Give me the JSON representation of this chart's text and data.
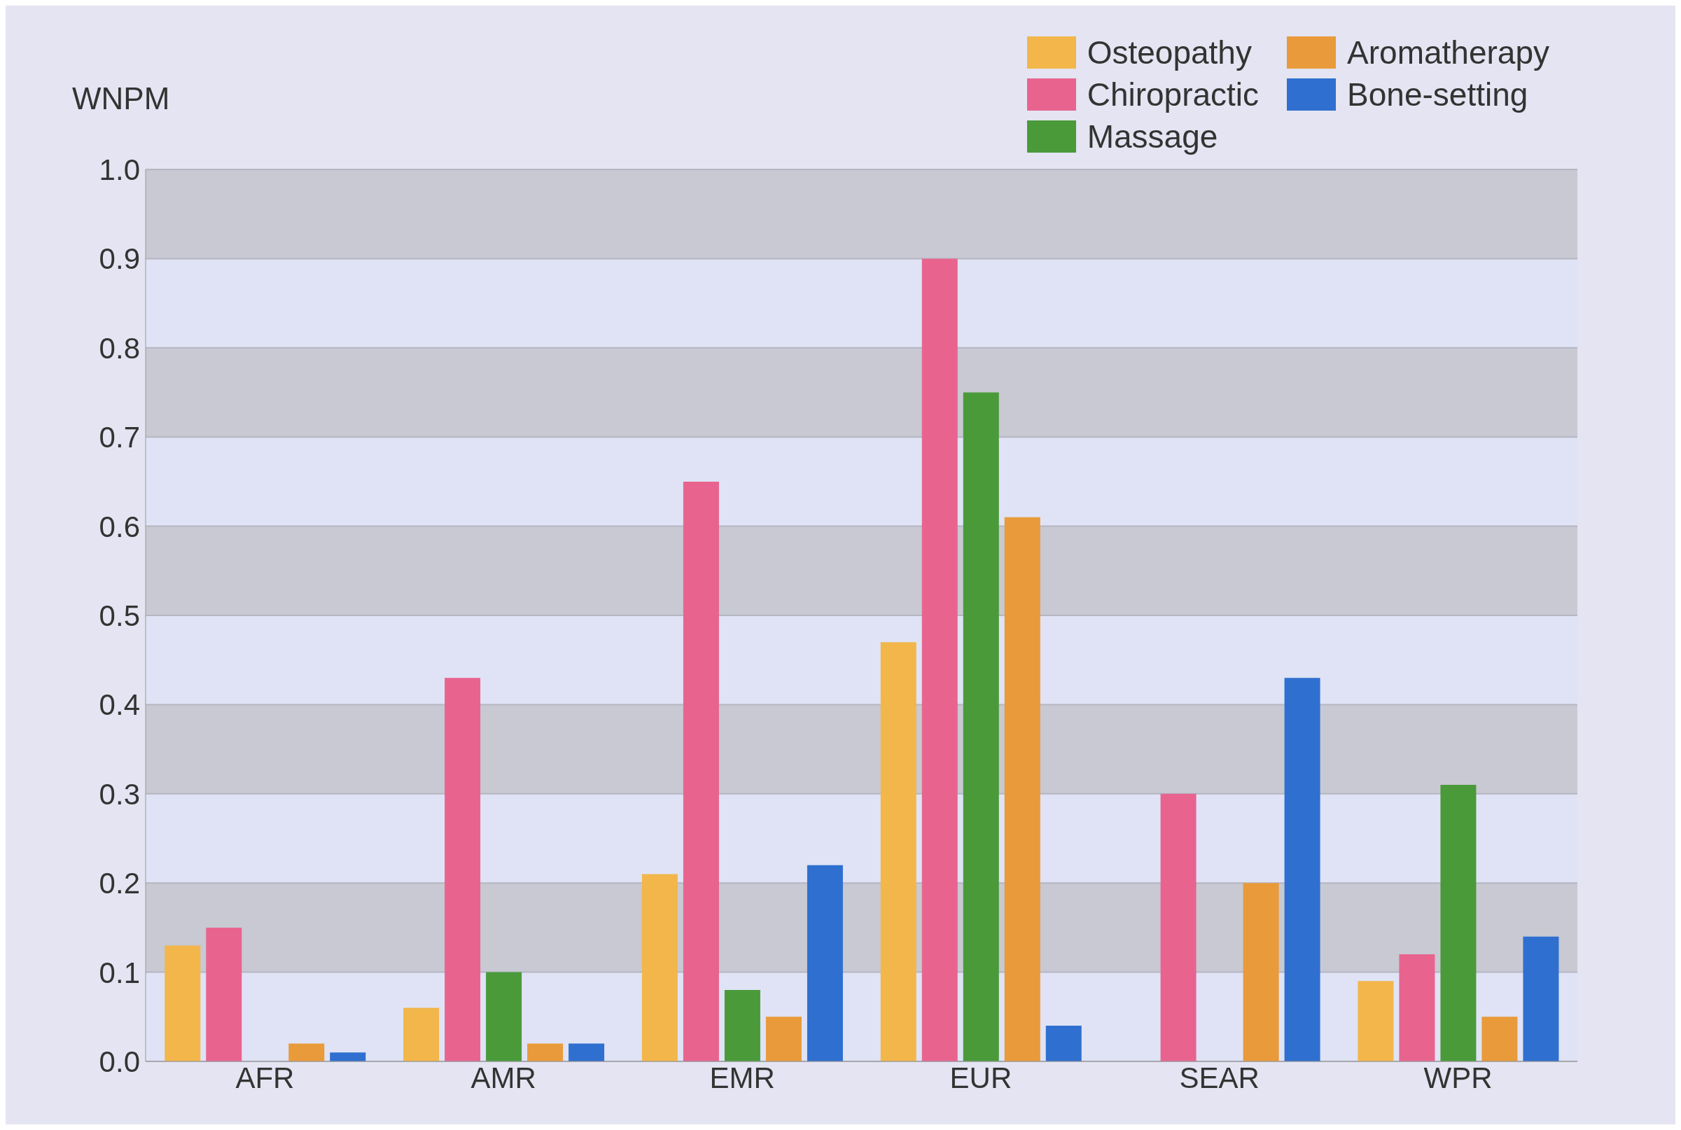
{
  "chart_data": {
    "type": "bar",
    "ylabel": "WNPM",
    "categories": [
      "AFR",
      "AMR",
      "EMR",
      "EUR",
      "SEAR",
      "WPR"
    ],
    "series": [
      {
        "name": "Osteopathy",
        "color": "#f2b64a",
        "values": [
          0.13,
          0.06,
          0.21,
          0.47,
          null,
          0.09
        ]
      },
      {
        "name": "Chiropractic",
        "color": "#e8648f",
        "values": [
          0.15,
          0.43,
          0.65,
          0.9,
          0.3,
          0.12
        ]
      },
      {
        "name": "Massage",
        "color": "#4a9a3a",
        "values": [
          null,
          0.1,
          0.08,
          0.75,
          null,
          0.31
        ]
      },
      {
        "name": "Aromatherapy",
        "color": "#e99a3a",
        "values": [
          0.02,
          0.02,
          0.05,
          0.61,
          0.2,
          0.05
        ]
      },
      {
        "name": "Bone-setting",
        "color": "#2f6fcf",
        "values": [
          0.01,
          0.02,
          0.22,
          0.04,
          0.43,
          0.14
        ]
      }
    ],
    "ylim": [
      0,
      1.0
    ],
    "yticks": [
      {
        "value": 0,
        "label": "0.0"
      },
      0.1,
      0.2,
      0.3,
      0.4,
      0.5,
      0.6,
      0.7,
      0.8,
      0.9,
      {
        "value": 1.0,
        "label": "1.0"
      }
    ],
    "grid": "y",
    "legend": "top right"
  }
}
